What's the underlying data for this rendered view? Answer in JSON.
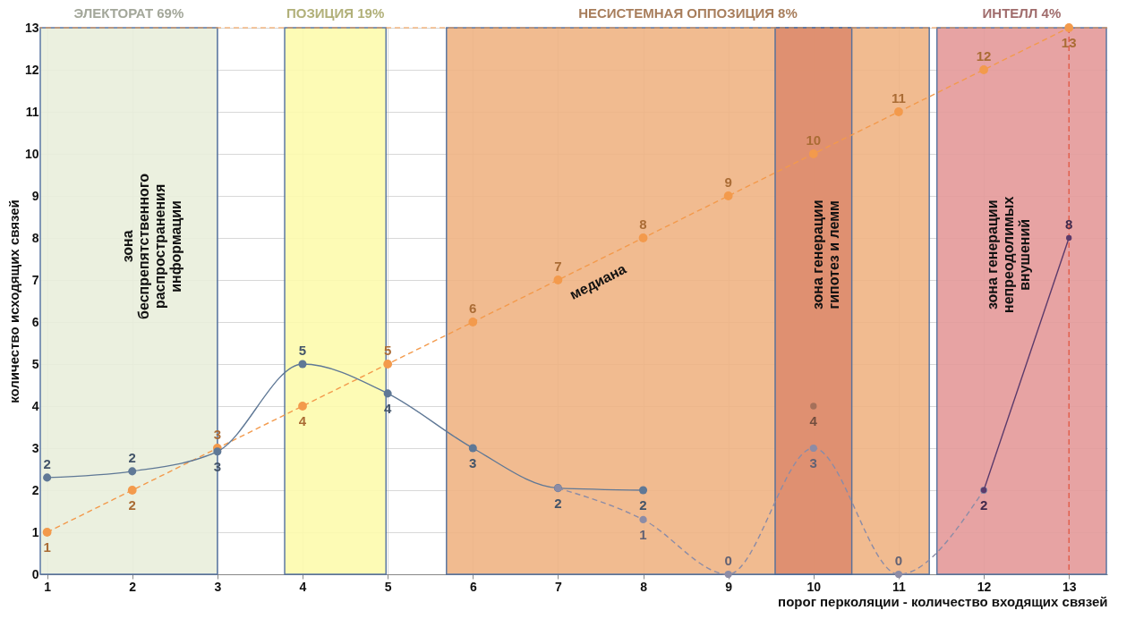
{
  "chart_data": {
    "type": "line",
    "xlabel": "порог перколяции - количество входящих связей",
    "ylabel": "количество исходящих связей",
    "x": [
      1,
      2,
      3,
      4,
      5,
      6,
      7,
      8,
      9,
      10,
      11,
      12,
      13
    ],
    "xlim": [
      0.92,
      13.45
    ],
    "ylim": [
      0,
      13
    ],
    "xticks": [
      1,
      2,
      3,
      4,
      5,
      6,
      7,
      8,
      9,
      10,
      11,
      12,
      13
    ],
    "yticks": [
      0,
      1,
      2,
      3,
      4,
      5,
      6,
      7,
      8,
      9,
      10,
      11,
      12,
      13
    ],
    "grid": true,
    "marker": "circle",
    "series": [
      {
        "color": "#f39a4c",
        "line_style": "dashed",
        "values": [
          1,
          2,
          3,
          4,
          5,
          6,
          7,
          8,
          9,
          10,
          11,
          12,
          13
        ],
        "value_labels": [
          "1",
          "2",
          "3",
          "4",
          "5",
          "6",
          "7",
          "8",
          "9",
          "10",
          "11",
          "12",
          "13"
        ]
      },
      {
        "color": "#5f7896",
        "line_style": "solid",
        "x": [
          1,
          2,
          3,
          4,
          5,
          6,
          7,
          8
        ],
        "values": [
          2.3,
          2.45,
          2.92,
          5,
          4.3,
          3,
          2.05,
          2
        ],
        "value_labels": [
          "2",
          "2",
          "3",
          "5",
          "4",
          "3",
          "2",
          "2"
        ]
      },
      {
        "color": "#8c8ca6",
        "line_style": "dashed",
        "x": [
          7,
          8,
          9,
          10,
          11,
          12
        ],
        "values": [
          2.05,
          1.3,
          0,
          3,
          0,
          2
        ],
        "value_labels": [
          null,
          "1",
          "0",
          "3",
          "0",
          null
        ]
      },
      {
        "type": "scatter",
        "color": "#a5705a",
        "x": [
          10
        ],
        "values": [
          4
        ],
        "value_labels": [
          "4"
        ]
      },
      {
        "color": "#5b3a6b",
        "line_style": "solid",
        "x": [
          12,
          13
        ],
        "values": [
          2,
          8
        ],
        "value_labels": [
          "2",
          "8"
        ]
      }
    ],
    "bands": [
      {
        "axis": "x",
        "from": 0.92,
        "to": 3.0,
        "label": "ЭЛЕКТОРАТ 69%",
        "color": "#e9efdc"
      },
      {
        "axis": "x",
        "from": 3.79,
        "to": 4.98,
        "label": "ПОЗИЦИЯ 19%",
        "color": "#fdfbad"
      },
      {
        "axis": "x",
        "from": 5.69,
        "to": 11.36,
        "label": "НЕСИСТЕМНАЯ ОППОЗИЦИЯ 8%",
        "color": "#f0b484"
      },
      {
        "axis": "x",
        "from": 9.55,
        "to": 10.45,
        "color": "#de8c6e"
      },
      {
        "axis": "x",
        "from": 11.45,
        "to": 13.44,
        "label": "ИНТЕЛЛ 4%",
        "color": "#e59a9a"
      }
    ],
    "ref_lines": [
      {
        "axis": "y",
        "value": 13,
        "color": "#f39a4c",
        "line_style": "dashed"
      },
      {
        "axis": "x",
        "value": 13,
        "color": "#e0503a",
        "line_style": "dashed"
      }
    ],
    "annotations": [
      "зона\nбеспрепятственного\nраспространения\nинформации",
      "зона генерации\nгипотез и лемм",
      "зона генерации\nнепреодолимых\nвнушений",
      "медиана"
    ]
  }
}
